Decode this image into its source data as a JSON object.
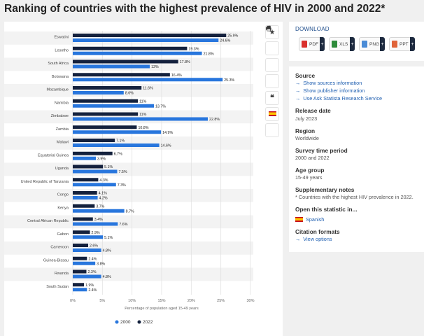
{
  "page": {
    "title": "Ranking of countries with the highest prevalence of HIV in 2000 and 2022*"
  },
  "colors": {
    "series_2000": "#2876dd",
    "series_2022": "#14213d",
    "link": "#1f5fb0"
  },
  "toolbar": {
    "icons": [
      "star-icon",
      "bell-icon",
      "gear-icon",
      "share-icon",
      "quote-icon",
      "spain-flag-icon",
      "print-icon"
    ]
  },
  "download": {
    "title": "DOWNLOAD",
    "buttons": [
      {
        "label": "PDF",
        "icon": "pdf-icon",
        "color": "#d9302c"
      },
      {
        "label": "XLS",
        "icon": "xls-icon",
        "color": "#2e8b3a"
      },
      {
        "label": "PNG",
        "icon": "png-icon",
        "color": "#4a8bd6"
      },
      {
        "label": "PPT",
        "icon": "ppt-icon",
        "color": "#e0643a"
      }
    ],
    "plus": "+"
  },
  "meta": {
    "source_heading": "Source",
    "source_links": [
      "Show sources information",
      "Show publisher information",
      "Use Ask Statista Research Service"
    ],
    "release_heading": "Release date",
    "release_value": "July 2023",
    "region_heading": "Region",
    "region_value": "Worldwide",
    "survey_heading": "Survey time period",
    "survey_value": "2000 and 2022",
    "age_heading": "Age group",
    "age_value": "15-49 years",
    "notes_heading": "Supplementary notes",
    "notes_value": "* Countries with the highest HIV prevalence in 2022.",
    "open_heading": "Open this statistic in...",
    "open_link": "Spanish",
    "citation_heading": "Citation formats",
    "citation_link": "View options"
  },
  "chart_data": {
    "type": "bar",
    "orientation": "horizontal",
    "categories": [
      "Eswatini",
      "Lesotho",
      "South Africa",
      "Botswana",
      "Mozambique",
      "Namibia",
      "Zimbabwe",
      "Zambia",
      "Malawi",
      "Equatorial Guinea",
      "Uganda",
      "United Republic of Tanzania",
      "Congo",
      "Kenya",
      "Central African Republic",
      "Gabon",
      "Cameroon",
      "Guinea-Bissau",
      "Rwanda",
      "South Sudan"
    ],
    "series": [
      {
        "name": "2022",
        "values": [
          25.9,
          19.3,
          17.8,
          16.4,
          11.6,
          11,
          11,
          10.8,
          7.1,
          6.7,
          5.1,
          4.3,
          4.1,
          3.7,
          3.4,
          2.9,
          2.6,
          2.4,
          2.3,
          1.9
        ]
      },
      {
        "name": "2000",
        "values": [
          24.6,
          21.8,
          13,
          25.3,
          8.6,
          13.7,
          22.8,
          14.9,
          14.6,
          3.9,
          7.5,
          7.3,
          4.2,
          8.7,
          7.6,
          5.1,
          4.8,
          3.8,
          4.8,
          2.4
        ]
      }
    ],
    "legend_order": [
      "2000",
      "2022"
    ],
    "xlabel": "Percentage of population aged 15-49 years",
    "ticks": [
      "0%",
      "5%",
      "10%",
      "15%",
      "20%",
      "25%",
      "30%"
    ],
    "xlim": [
      0,
      30
    ],
    "grid": true,
    "legend_position": "bottom",
    "value_suffix": "%"
  }
}
